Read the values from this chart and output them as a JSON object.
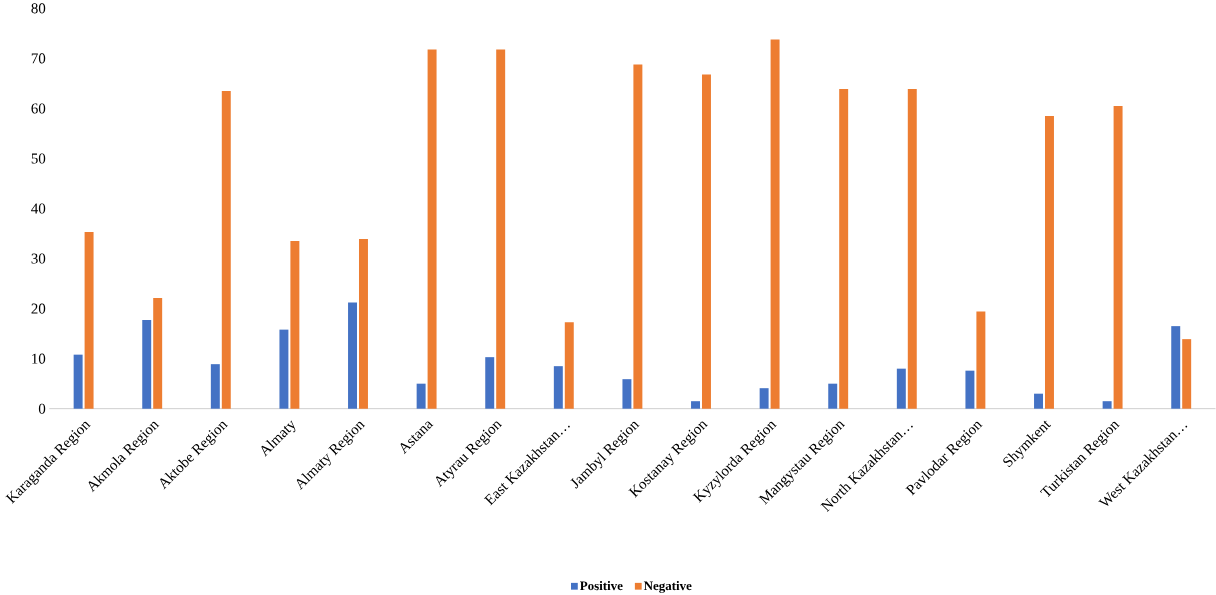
{
  "chart_data": {
    "type": "bar",
    "categories": [
      "Karaganda Region",
      "Akmola Region",
      "Aktobe Region",
      "Almaty",
      "Almaty Region",
      "Astana",
      "Atyrau Region",
      "East Kazakhstan…",
      "Jambyl Region",
      "Kostanay Region",
      "Kyzylorda Region",
      "Mangystau Region",
      "North Kazakhstan…",
      "Pavlodar Region",
      "Shymkent",
      "Turkistan Region",
      "West Kazakhstan…"
    ],
    "series": [
      {
        "name": "Positive",
        "color": "#4472c4",
        "values": [
          10.8,
          17.7,
          8.9,
          15.8,
          21.2,
          5.0,
          10.3,
          8.5,
          5.9,
          1.5,
          4.1,
          5.0,
          8.0,
          7.6,
          3.0,
          1.5,
          16.5
        ]
      },
      {
        "name": "Negative",
        "color": "#ed7d31",
        "values": [
          35.3,
          22.1,
          63.5,
          33.5,
          33.9,
          71.8,
          71.8,
          17.3,
          68.8,
          66.8,
          73.8,
          63.9,
          63.9,
          19.4,
          58.5,
          60.5,
          13.9
        ]
      }
    ],
    "ylim": [
      0,
      80
    ],
    "yticks": [
      0,
      10,
      20,
      30,
      40,
      50,
      60,
      70,
      80
    ],
    "grid": false,
    "legend": "bottom"
  }
}
